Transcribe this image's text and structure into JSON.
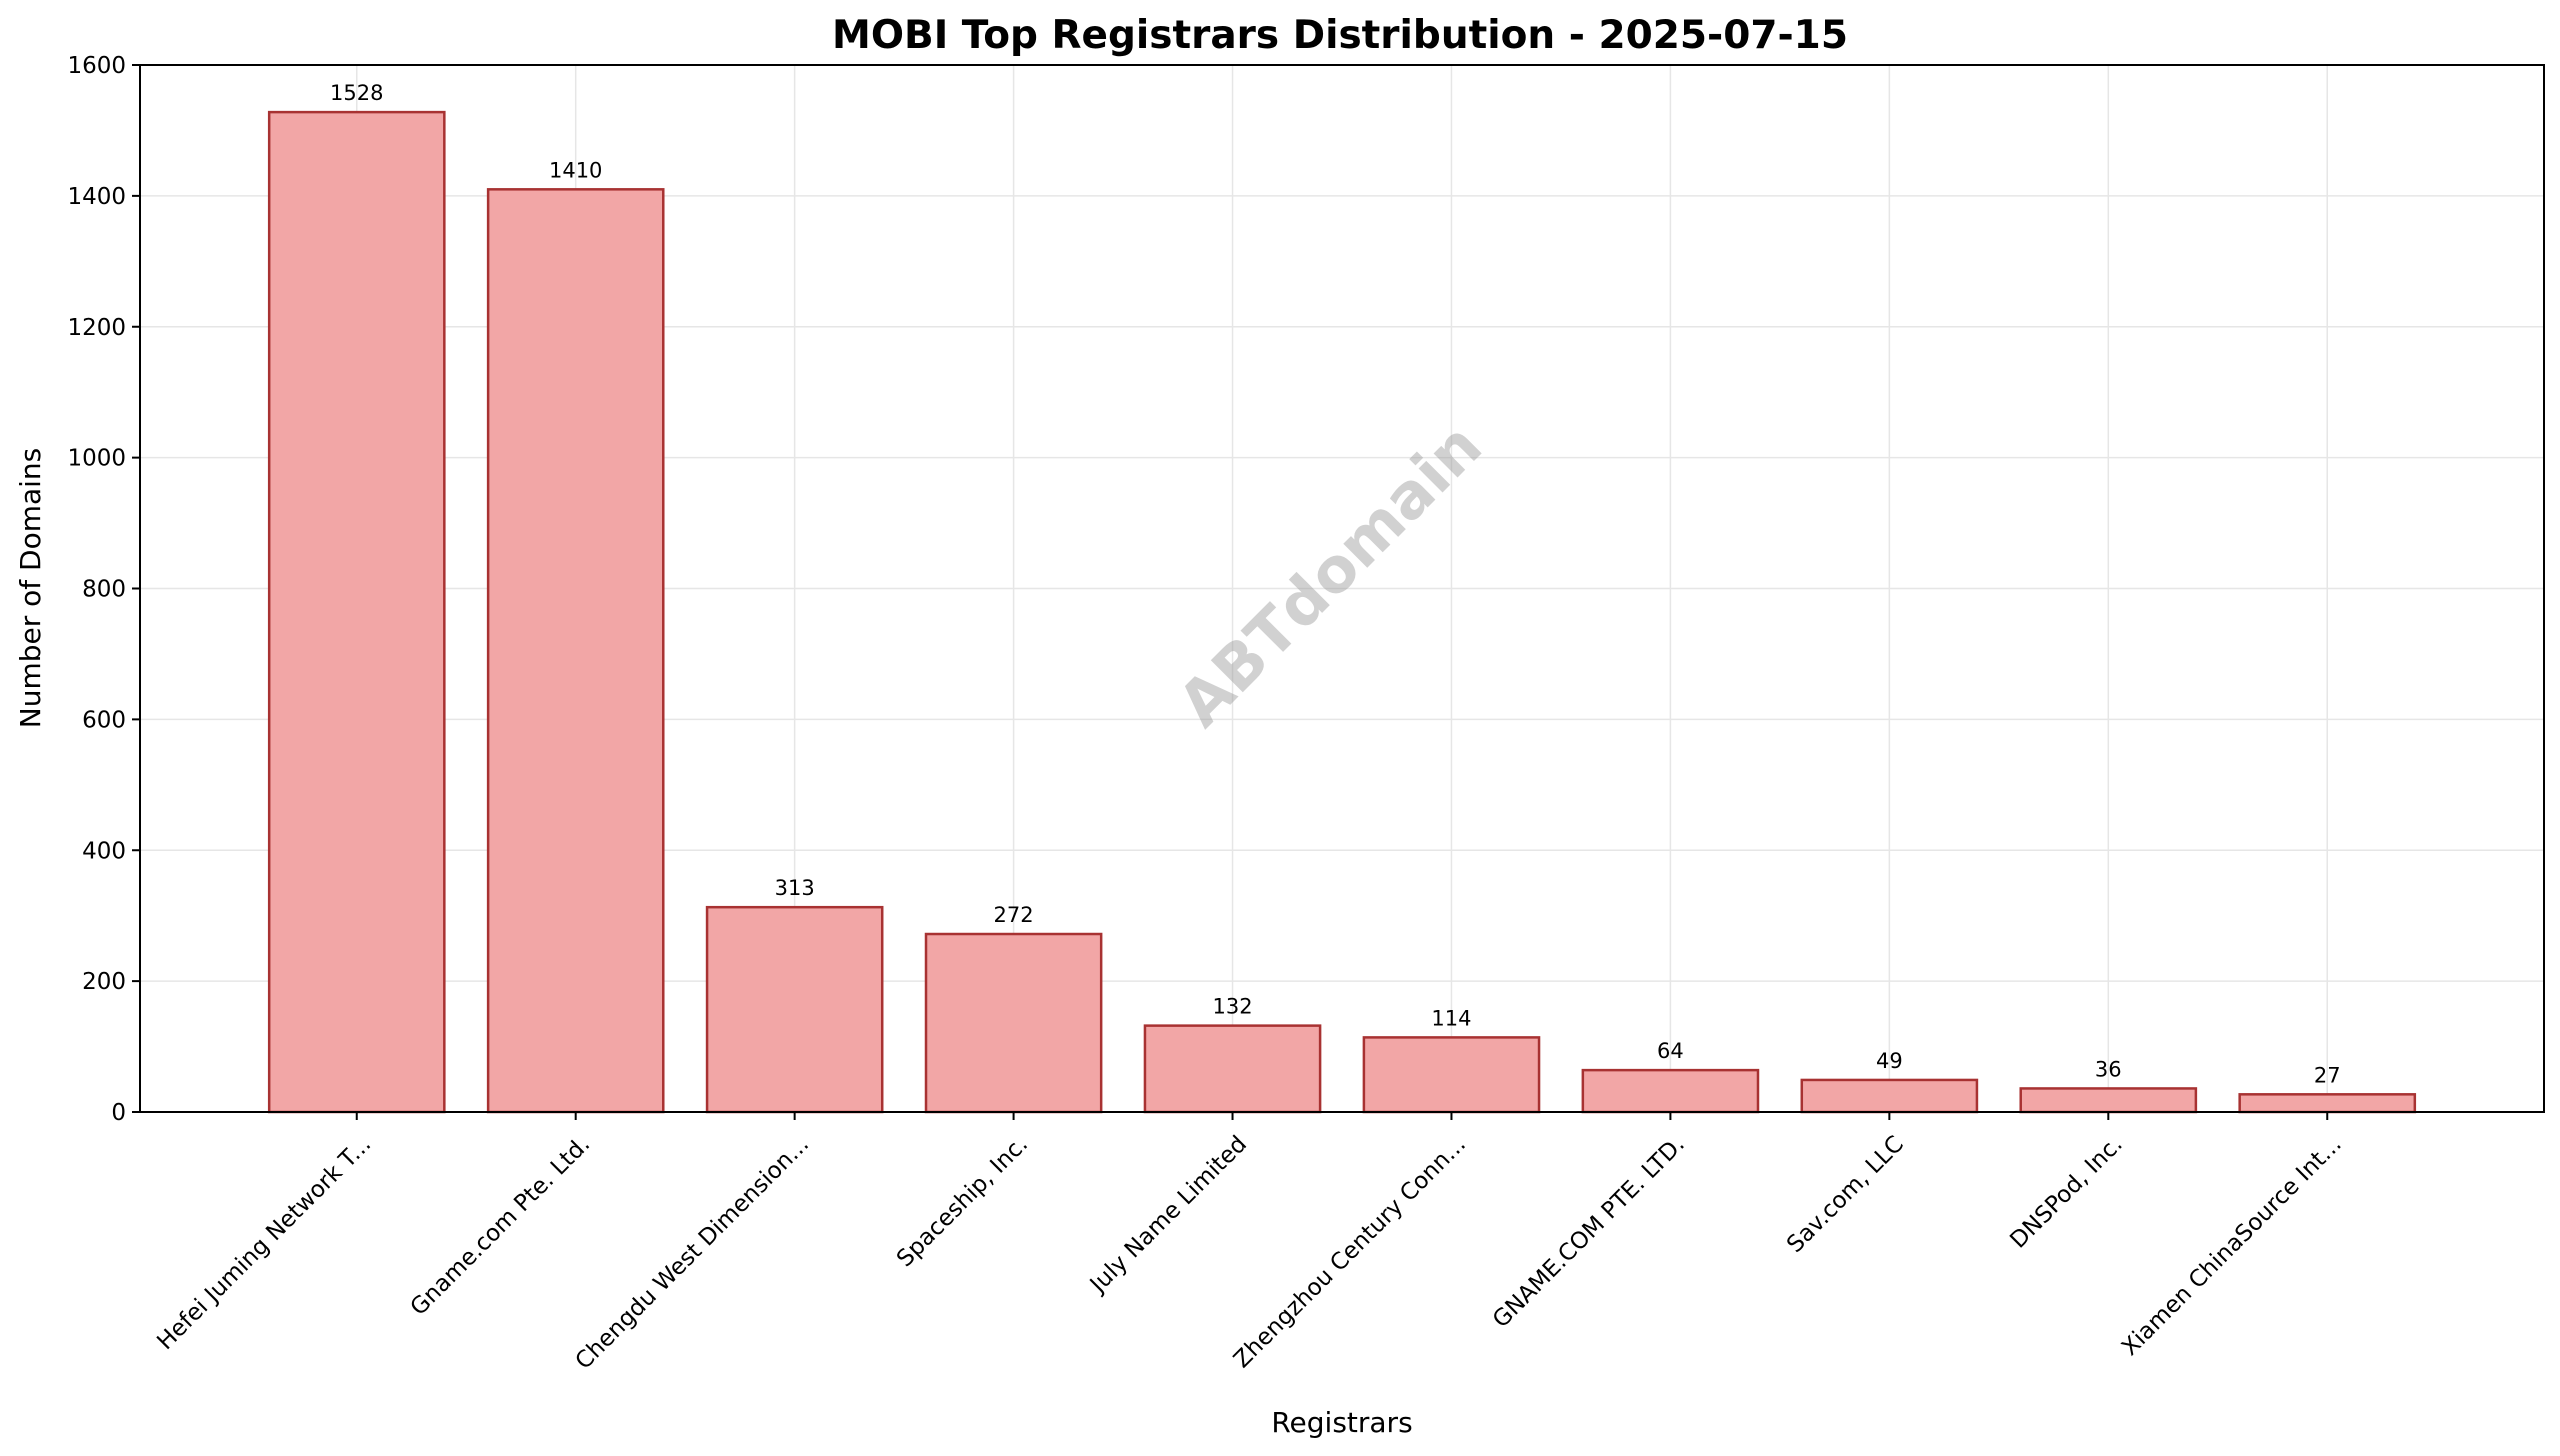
{
  "chart_data": {
    "type": "bar",
    "title": "MOBI Top Registrars Distribution - 2025-07-15",
    "xlabel": "Registrars",
    "ylabel": "Number of Domains",
    "ylim": [
      0,
      1600
    ],
    "yticks": [
      0,
      200,
      400,
      600,
      800,
      1000,
      1200,
      1400,
      1600
    ],
    "grid": true,
    "categories": [
      "Hefei Juming Network T...",
      "Gname.com Pte. Ltd.",
      "Chengdu West Dimension...",
      "Spaceship, Inc.",
      "July Name Limited",
      "Zhengzhou Century Conn...",
      "GNAME.COM PTE. LTD.",
      "Sav.com, LLC",
      "DNSPod, Inc.",
      "Xiamen ChinaSource Int..."
    ],
    "values": [
      1528,
      1410,
      313,
      272,
      132,
      114,
      64,
      49,
      36,
      27
    ],
    "bar_color": "#f2a6a6",
    "edge_color": "#a83232"
  },
  "watermark": "ABTdomain"
}
